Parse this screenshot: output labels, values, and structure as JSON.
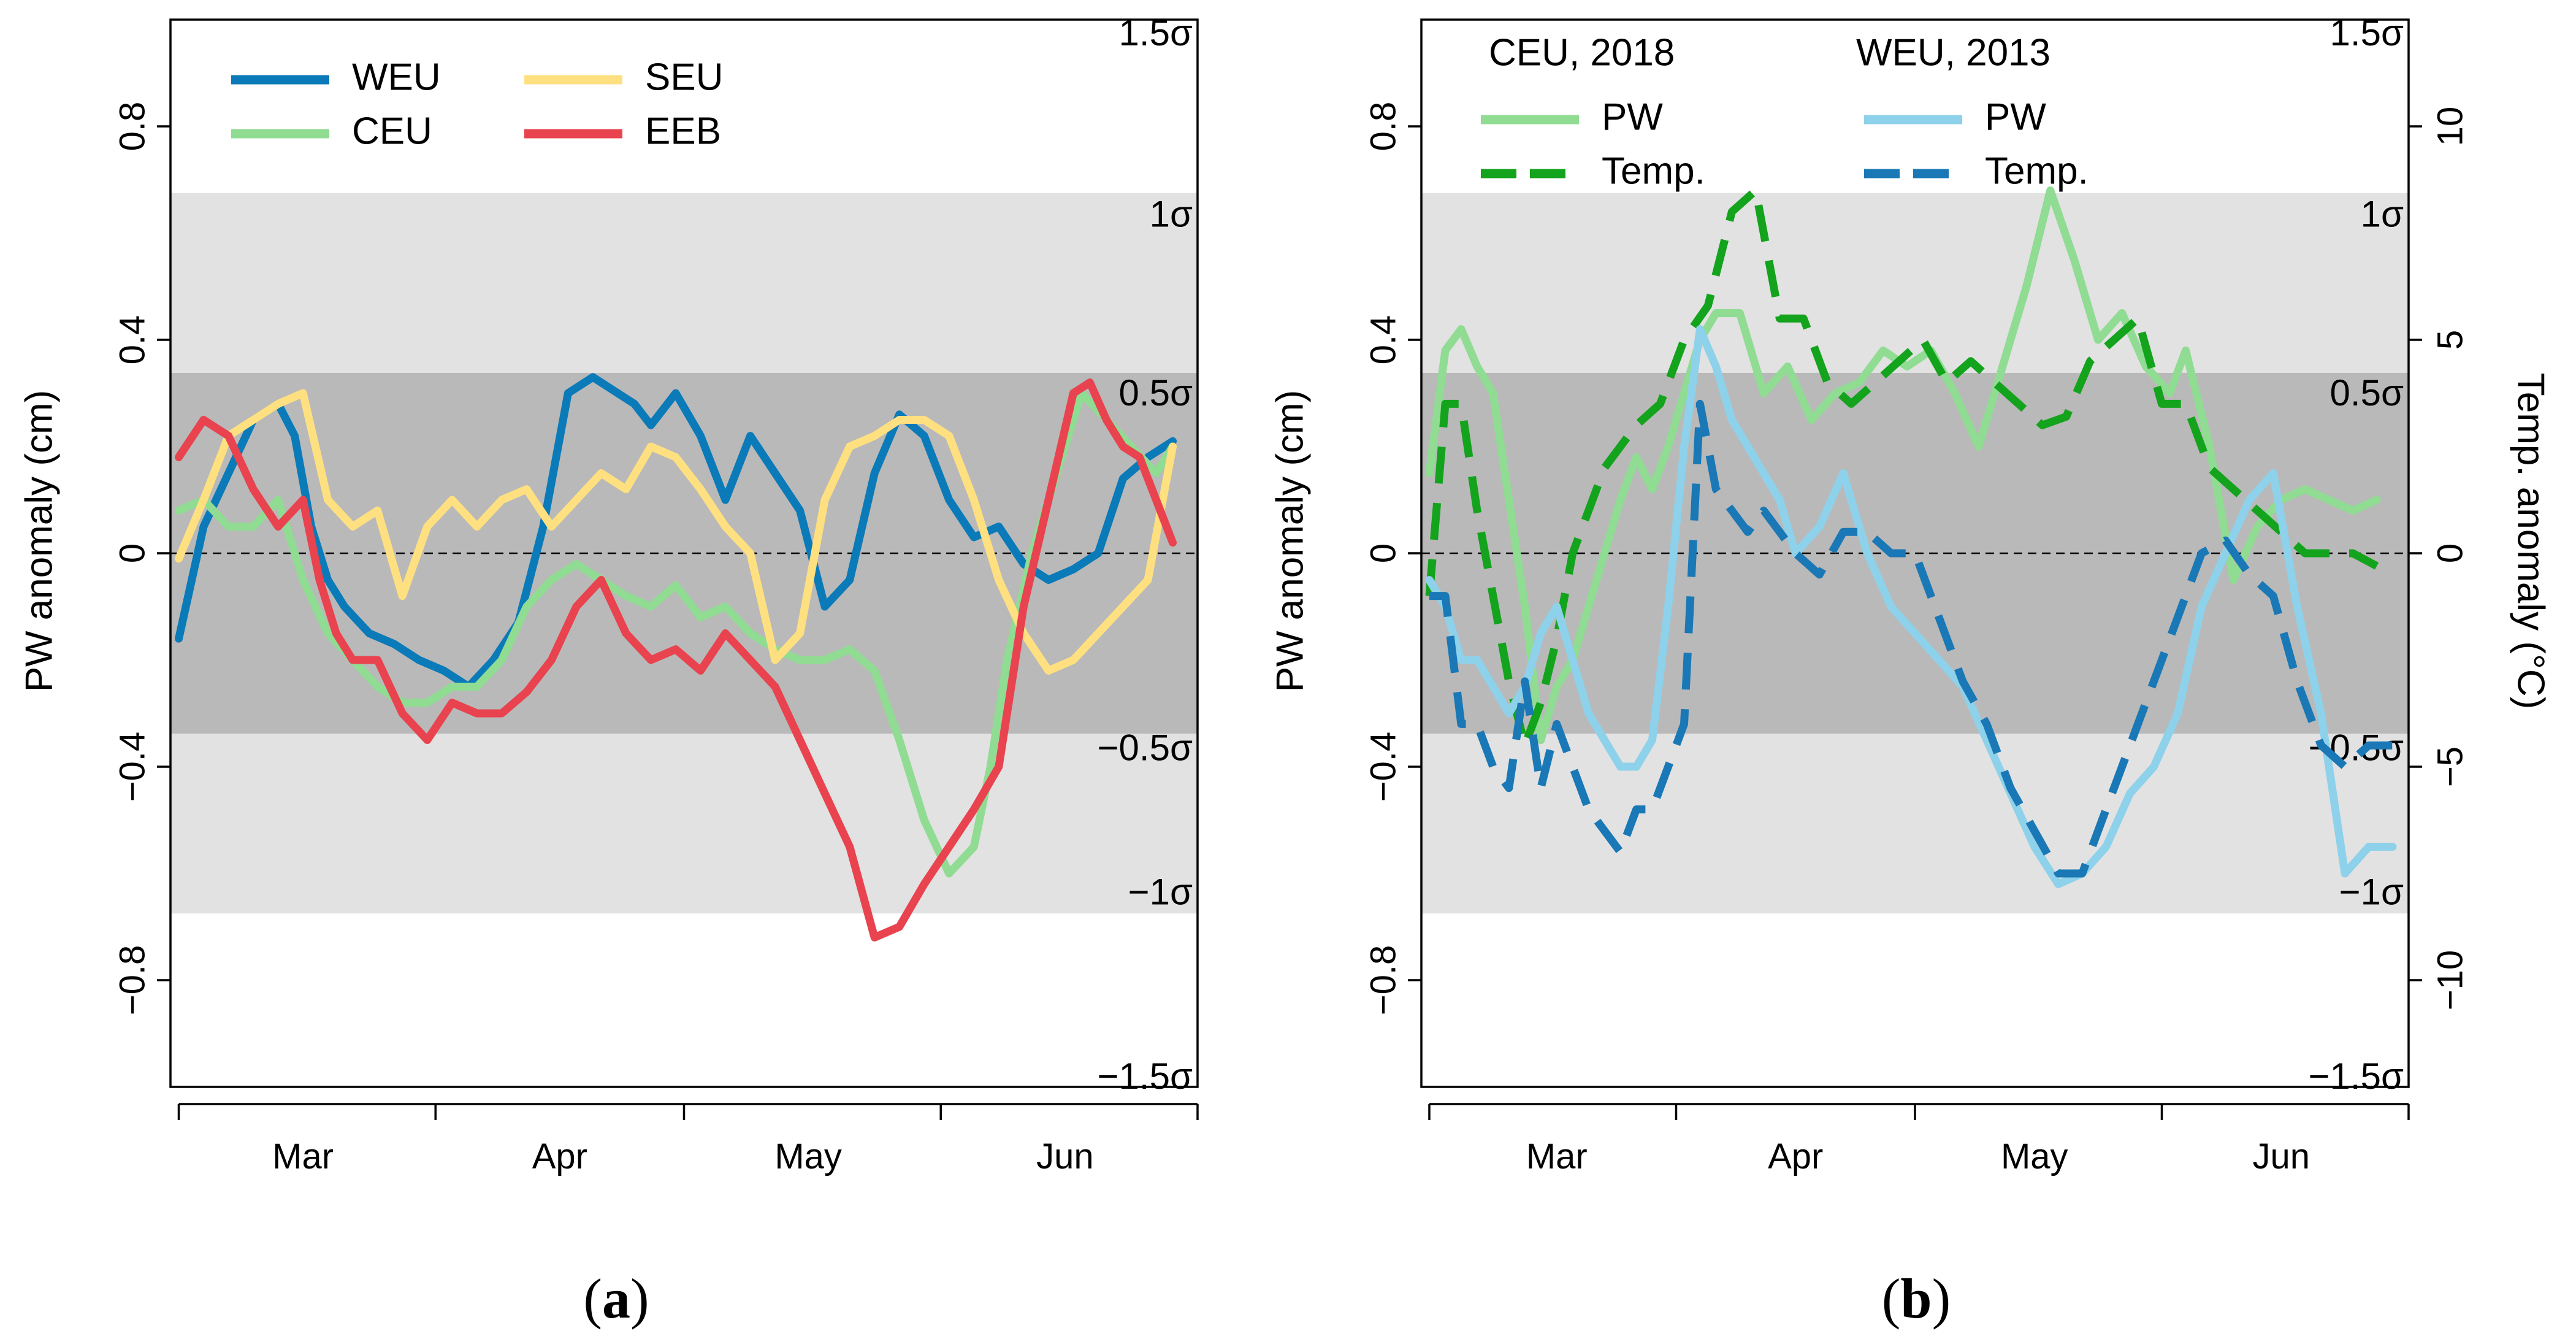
{
  "chart_data": [
    {
      "type": "line",
      "panel_label": [
        "(",
        "a",
        ")"
      ],
      "ylabel": "PW anomaly (cm)",
      "ylim": [
        -1.0,
        1.0
      ],
      "yticks": [
        -0.8,
        -0.4,
        0,
        0.4,
        0.8
      ],
      "ytick_labels": [
        "−0.8",
        "−0.4",
        "0",
        "0.4",
        "0.8"
      ],
      "month_labels": [
        "Mar",
        "Apr",
        "May",
        "Jun"
      ],
      "month_label_days": [
        16,
        47,
        77,
        108
      ],
      "month_tick_days": [
        1,
        32,
        62,
        93,
        124
      ],
      "xlim": [
        0,
        124
      ],
      "zero_line": true,
      "sigma_band": {
        "inner_cm": 0.338,
        "outer_cm": 0.675,
        "labels": [
          {
            "text": "1.5σ",
            "value": 0.97
          },
          {
            "text": "1σ",
            "value": 0.63
          },
          {
            "text": "0.5σ",
            "value": 0.295
          },
          {
            "text": "−0.5σ",
            "value": -0.37
          },
          {
            "text": "−1σ",
            "value": -0.64
          },
          {
            "text": "−1.5σ",
            "value": -0.985
          }
        ]
      },
      "legend": {
        "placement": "top-left",
        "entries": [
          {
            "label": "WEU",
            "series": "WEU"
          },
          {
            "label": "CEU",
            "series": "CEU"
          },
          {
            "label": "SEU",
            "series": "SEU"
          },
          {
            "label": "EEB",
            "series": "EEB"
          }
        ]
      },
      "series": [
        {
          "name": "WEU",
          "color": "#0a7ab8",
          "dash": "solid",
          "x": [
            1,
            4,
            7,
            10,
            13,
            15,
            17,
            19,
            21,
            24,
            27,
            30,
            33,
            36,
            39,
            42,
            45,
            48,
            51,
            54,
            56,
            58,
            61,
            64,
            67,
            70,
            73,
            76,
            79,
            82,
            85,
            88,
            91,
            94,
            97,
            100,
            103,
            106,
            109,
            112,
            115,
            118,
            121
          ],
          "y": [
            -0.16,
            0.05,
            0.15,
            0.25,
            0.28,
            0.22,
            0.05,
            -0.05,
            -0.1,
            -0.15,
            -0.17,
            -0.2,
            -0.22,
            -0.25,
            -0.2,
            -0.13,
            0.05,
            0.3,
            0.33,
            0.3,
            0.28,
            0.24,
            0.3,
            0.22,
            0.1,
            0.22,
            0.15,
            0.08,
            -0.1,
            -0.05,
            0.15,
            0.26,
            0.22,
            0.1,
            0.03,
            0.05,
            -0.02,
            -0.05,
            -0.03,
            0.0,
            0.14,
            0.18,
            0.21
          ]
        },
        {
          "name": "CEU",
          "color": "#8fdc92",
          "dash": "solid",
          "x": [
            1,
            4,
            7,
            10,
            13,
            16,
            19,
            22,
            25,
            28,
            31,
            34,
            37,
            40,
            43,
            46,
            49,
            52,
            55,
            58,
            61,
            64,
            67,
            70,
            73,
            76,
            79,
            82,
            85,
            88,
            91,
            94,
            97,
            99,
            101,
            104,
            107,
            110,
            113,
            116,
            119,
            121
          ],
          "y": [
            0.08,
            0.1,
            0.05,
            0.05,
            0.1,
            -0.05,
            -0.15,
            -0.2,
            -0.25,
            -0.28,
            -0.28,
            -0.25,
            -0.25,
            -0.2,
            -0.1,
            -0.05,
            -0.02,
            -0.05,
            -0.08,
            -0.1,
            -0.06,
            -0.12,
            -0.1,
            -0.15,
            -0.18,
            -0.2,
            -0.2,
            -0.18,
            -0.22,
            -0.35,
            -0.5,
            -0.6,
            -0.55,
            -0.4,
            -0.2,
            0.0,
            0.15,
            0.3,
            0.25,
            0.2,
            0.15,
            0.2
          ]
        },
        {
          "name": "SEU",
          "color": "#ffe080",
          "dash": "solid",
          "x": [
            1,
            4,
            7,
            10,
            13,
            16,
            19,
            22,
            25,
            28,
            31,
            34,
            37,
            40,
            43,
            46,
            49,
            52,
            55,
            58,
            61,
            64,
            67,
            70,
            73,
            76,
            79,
            82,
            85,
            88,
            91,
            94,
            97,
            100,
            103,
            106,
            109,
            112,
            115,
            118,
            121
          ],
          "y": [
            -0.01,
            0.1,
            0.22,
            0.25,
            0.28,
            0.3,
            0.1,
            0.05,
            0.08,
            -0.08,
            0.05,
            0.1,
            0.05,
            0.1,
            0.12,
            0.05,
            0.1,
            0.15,
            0.12,
            0.2,
            0.18,
            0.12,
            0.05,
            0.0,
            -0.2,
            -0.15,
            0.1,
            0.2,
            0.22,
            0.25,
            0.25,
            0.22,
            0.1,
            -0.05,
            -0.15,
            -0.22,
            -0.2,
            -0.15,
            -0.1,
            -0.05,
            0.2
          ]
        },
        {
          "name": "EEB",
          "color": "#e8434e",
          "dash": "solid",
          "x": [
            1,
            4,
            7,
            10,
            13,
            16,
            18,
            20,
            22,
            25,
            28,
            31,
            34,
            37,
            40,
            43,
            46,
            49,
            52,
            55,
            58,
            61,
            64,
            67,
            70,
            73,
            76,
            79,
            82,
            85,
            88,
            91,
            94,
            97,
            100,
            103,
            106,
            109,
            111,
            113,
            115,
            117,
            119,
            121
          ],
          "y": [
            0.18,
            0.25,
            0.22,
            0.12,
            0.05,
            0.1,
            -0.05,
            -0.15,
            -0.2,
            -0.2,
            -0.3,
            -0.35,
            -0.28,
            -0.3,
            -0.3,
            -0.26,
            -0.2,
            -0.1,
            -0.05,
            -0.15,
            -0.2,
            -0.18,
            -0.22,
            -0.15,
            -0.2,
            -0.25,
            -0.35,
            -0.45,
            -0.55,
            -0.72,
            -0.7,
            -0.62,
            -0.55,
            -0.48,
            -0.4,
            -0.1,
            0.1,
            0.3,
            0.32,
            0.25,
            0.2,
            0.18,
            0.1,
            0.02
          ]
        }
      ]
    },
    {
      "type": "line",
      "panel_label": [
        "(",
        "b",
        ")"
      ],
      "ylabel": "PW anomaly (cm)",
      "y2label": "Temp. anomaly (°C)",
      "ylim": [
        -1.0,
        1.0
      ],
      "yticks": [
        -0.8,
        -0.4,
        0,
        0.4,
        0.8
      ],
      "ytick_labels": [
        "−0.8",
        "−0.4",
        "0",
        "0.4",
        "0.8"
      ],
      "y2lim": [
        -12.5,
        12.5
      ],
      "y2ticks": [
        -10,
        -5,
        0,
        5,
        10
      ],
      "y2tick_labels": [
        "−10",
        "−5",
        "0",
        "5",
        "10"
      ],
      "month_labels": [
        "Mar",
        "Apr",
        "May",
        "Jun"
      ],
      "month_label_days": [
        17,
        47,
        77,
        108
      ],
      "month_tick_days": [
        1,
        32,
        62,
        93,
        124
      ],
      "xlim": [
        0,
        124
      ],
      "zero_line": true,
      "sigma_band": {
        "inner_cm": 0.338,
        "outer_cm": 0.675,
        "labels": [
          {
            "text": "1.5σ",
            "value": 0.97
          },
          {
            "text": "1σ",
            "value": 0.63
          },
          {
            "text": "0.5σ",
            "value": 0.295
          },
          {
            "text": "−0.5σ",
            "value": -0.37
          },
          {
            "text": "−1σ",
            "value": -0.64
          },
          {
            "text": "−1.5σ",
            "value": -0.985
          }
        ]
      },
      "legend": {
        "placement": "top",
        "groups": [
          {
            "title": "CEU, 2018",
            "entries": [
              {
                "label": "PW",
                "series": "CEU 2018 PW"
              },
              {
                "label": "Temp.",
                "series": "CEU 2018 Temp."
              }
            ]
          },
          {
            "title": "WEU, 2013",
            "entries": [
              {
                "label": "PW",
                "series": "WEU 2013 PW"
              },
              {
                "label": "Temp.",
                "series": "WEU 2013 Temp."
              }
            ]
          }
        ]
      },
      "series": [
        {
          "name": "CEU 2018 PW",
          "color": "#8fdc92",
          "dash": "solid",
          "axis": "left",
          "x": [
            1,
            3,
            5,
            7,
            9,
            11,
            13,
            15,
            17,
            19,
            21,
            23,
            25,
            27,
            29,
            31,
            33,
            35,
            37,
            40,
            43,
            46,
            49,
            52,
            55,
            58,
            61,
            64,
            67,
            70,
            73,
            76,
            79,
            82,
            85,
            88,
            91,
            94,
            96,
            99,
            102,
            105,
            108,
            111,
            114,
            117,
            120
          ],
          "y": [
            0.15,
            0.38,
            0.42,
            0.35,
            0.3,
            0.1,
            -0.1,
            -0.35,
            -0.25,
            -0.2,
            -0.1,
            0.0,
            0.1,
            0.18,
            0.12,
            0.2,
            0.3,
            0.4,
            0.45,
            0.45,
            0.3,
            0.35,
            0.25,
            0.3,
            0.32,
            0.38,
            0.35,
            0.38,
            0.3,
            0.2,
            0.35,
            0.5,
            0.68,
            0.55,
            0.4,
            0.45,
            0.35,
            0.3,
            0.38,
            0.2,
            -0.05,
            0.05,
            0.1,
            0.12,
            0.1,
            0.08,
            0.1
          ]
        },
        {
          "name": "CEU 2018 Temp.",
          "color": "#13a31c",
          "dash": "dashed",
          "axis": "right",
          "x": [
            1,
            3,
            5,
            7,
            9,
            11,
            13,
            15,
            17,
            19,
            21,
            23,
            25,
            27,
            30,
            33,
            36,
            39,
            42,
            45,
            48,
            51,
            54,
            57,
            60,
            63,
            66,
            69,
            72,
            75,
            78,
            81,
            84,
            87,
            90,
            93,
            96,
            99,
            102,
            105,
            108,
            111,
            114,
            117,
            120
          ],
          "y": [
            -1,
            3.5,
            3.5,
            1,
            -1,
            -3,
            -4.5,
            -3.5,
            -2,
            0,
            1,
            2,
            2.5,
            3,
            3.5,
            5,
            5.8,
            8,
            8.5,
            5.5,
            5.5,
            4,
            3.5,
            4,
            4.5,
            5,
            4,
            4.5,
            4,
            3.5,
            3,
            3.2,
            4.5,
            5,
            5.5,
            3.5,
            3.5,
            2,
            1.5,
            1,
            0.5,
            0,
            0,
            0,
            -0.3
          ]
        },
        {
          "name": "WEU 2013 PW",
          "color": "#8ed1ea",
          "dash": "solid",
          "axis": "left",
          "x": [
            1,
            3,
            5,
            7,
            9,
            11,
            13,
            15,
            17,
            19,
            21,
            23,
            25,
            27,
            29,
            31,
            33,
            35,
            37,
            39,
            41,
            43,
            45,
            47,
            50,
            53,
            56,
            59,
            62,
            65,
            68,
            71,
            74,
            77,
            80,
            83,
            86,
            89,
            92,
            95,
            98,
            101,
            104,
            107,
            110,
            113,
            116,
            119,
            122
          ],
          "y": [
            -0.05,
            -0.1,
            -0.2,
            -0.2,
            -0.25,
            -0.3,
            -0.25,
            -0.15,
            -0.1,
            -0.2,
            -0.3,
            -0.35,
            -0.4,
            -0.4,
            -0.35,
            -0.1,
            0.2,
            0.42,
            0.35,
            0.25,
            0.2,
            0.15,
            0.1,
            0.0,
            0.05,
            0.15,
            0.0,
            -0.1,
            -0.15,
            -0.2,
            -0.25,
            -0.35,
            -0.45,
            -0.55,
            -0.62,
            -0.6,
            -0.55,
            -0.45,
            -0.4,
            -0.3,
            -0.1,
            0.0,
            0.1,
            0.15,
            -0.1,
            -0.3,
            -0.6,
            -0.55,
            -0.55
          ]
        },
        {
          "name": "WEU 2013 Temp.",
          "color": "#1978b5",
          "dash": "dashed",
          "axis": "right",
          "x": [
            1,
            3,
            5,
            7,
            9,
            11,
            13,
            15,
            17,
            19,
            21,
            23,
            25,
            27,
            29,
            31,
            33,
            35,
            37,
            39,
            41,
            43,
            45,
            47,
            50,
            53,
            56,
            59,
            62,
            65,
            68,
            71,
            74,
            77,
            80,
            83,
            86,
            89,
            92,
            95,
            98,
            101,
            104,
            107,
            110,
            113,
            116,
            119,
            122
          ],
          "y": [
            -1,
            -1,
            -4,
            -4,
            -5,
            -5.5,
            -3,
            -5.5,
            -4,
            -5,
            -6,
            -6.5,
            -7,
            -6,
            -6,
            -5,
            -4,
            3.5,
            1.5,
            1,
            0.5,
            1,
            0.5,
            0,
            -0.5,
            0.5,
            0.5,
            0,
            0,
            -1.5,
            -3,
            -4,
            -5.5,
            -6.5,
            -7.5,
            -7.5,
            -6,
            -4.5,
            -3,
            -1.5,
            0,
            0.3,
            -0.5,
            -1,
            -3,
            -4.5,
            -5,
            -4.5,
            -4.5
          ]
        }
      ]
    }
  ]
}
